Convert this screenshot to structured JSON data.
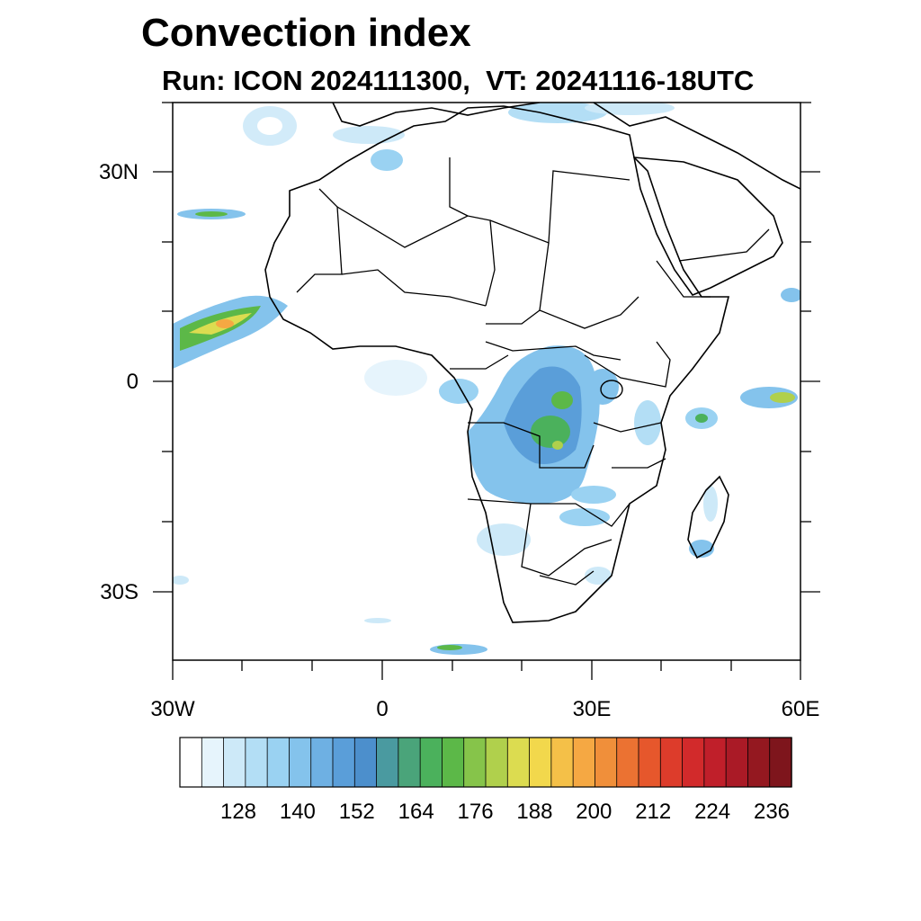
{
  "title": "Convection index",
  "subtitle": "Run: ICON 2024111300,  VT: 20241116-18UTC",
  "axes": {
    "lat_labels": [
      "30N",
      "0",
      "30S"
    ],
    "lon_labels": [
      "30W",
      "0",
      "30E",
      "60E"
    ]
  },
  "colorbar": {
    "labels": [
      "128",
      "140",
      "152",
      "164",
      "176",
      "188",
      "200",
      "212",
      "224",
      "236"
    ],
    "colors": [
      "#ffffff",
      "#e6f4fc",
      "#cde9f8",
      "#b3def5",
      "#9ad2f2",
      "#84c3ec",
      "#6eb0e3",
      "#5a9ed9",
      "#4c8fcc",
      "#4a9aa0",
      "#4aa47a",
      "#4bb15c",
      "#5cb848",
      "#86c44a",
      "#b0d04c",
      "#dcdc50",
      "#f2d84c",
      "#f4c048",
      "#f5a843",
      "#f08f3a",
      "#eb7232",
      "#e6572c",
      "#dd3c2b",
      "#d22a2b",
      "#c01f2a",
      "#aa1a26",
      "#941820",
      "#7e151c"
    ]
  },
  "legend_visible": true
}
